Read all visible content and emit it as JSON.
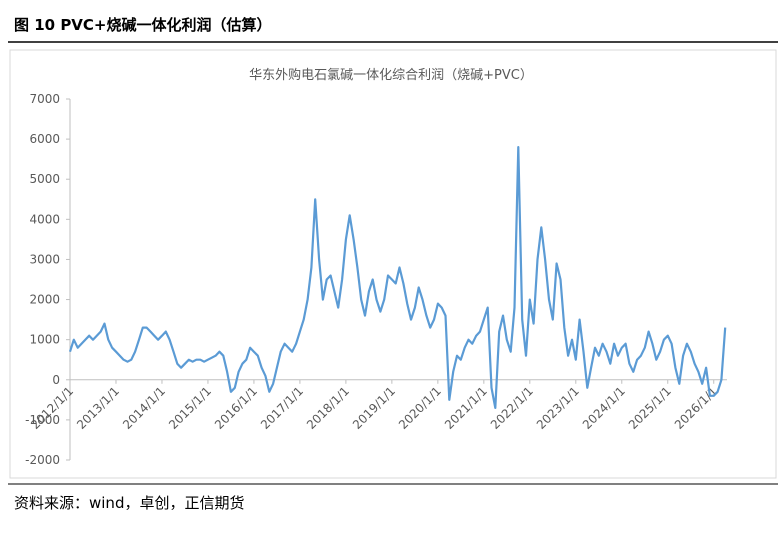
{
  "header": {
    "title": "图 10    PVC+烧碱一体化利润（估算）"
  },
  "footer": {
    "source": "资料来源：wind，卓创，正信期货"
  },
  "chart_data": {
    "type": "line",
    "title": "华东外购电石氯碱一体化综合利润（烧碱+PVC）",
    "xlim": [
      "2012/1/1",
      "2026/4/15"
    ],
    "xticks": [
      "2012/1/1",
      "2013/1/1",
      "2014/1/1",
      "2015/1/1",
      "2016/1/1",
      "2017/1/1",
      "2018/1/1",
      "2019/1/1",
      "2020/1/1",
      "2021/1/1",
      "2022/1/1",
      "2023/1/1",
      "2024/1/1",
      "2025/1/1",
      "2026/1/1"
    ],
    "ylim": [
      -2000,
      7000
    ],
    "yticks": [
      -2000,
      -1000,
      0,
      1000,
      2000,
      3000,
      4000,
      5000,
      6000,
      7000
    ],
    "series": [
      {
        "color": "#5b9bd5",
        "x": [
          "2012/1/1",
          "2012/2/1",
          "2012/3/1",
          "2012/4/1",
          "2012/5/1",
          "2012/6/1",
          "2012/7/1",
          "2012/8/1",
          "2012/9/1",
          "2012/10/1",
          "2012/11/1",
          "2012/12/1",
          "2013/1/1",
          "2013/2/1",
          "2013/3/1",
          "2013/4/1",
          "2013/5/1",
          "2013/6/1",
          "2013/7/1",
          "2013/8/1",
          "2013/9/1",
          "2013/10/1",
          "2013/11/1",
          "2013/12/1",
          "2014/1/1",
          "2014/2/1",
          "2014/3/1",
          "2014/4/1",
          "2014/5/1",
          "2014/6/1",
          "2014/7/1",
          "2014/8/1",
          "2014/9/1",
          "2014/10/1",
          "2014/11/1",
          "2014/12/1",
          "2015/1/1",
          "2015/2/1",
          "2015/3/1",
          "2015/4/1",
          "2015/5/1",
          "2015/6/1",
          "2015/7/1",
          "2015/8/1",
          "2015/9/1",
          "2015/10/1",
          "2015/11/1",
          "2015/12/1",
          "2016/1/1",
          "2016/2/1",
          "2016/3/1",
          "2016/4/1",
          "2016/5/1",
          "2016/6/1",
          "2016/7/1",
          "2016/8/1",
          "2016/9/1",
          "2016/10/1",
          "2016/11/1",
          "2016/12/1",
          "2017/1/1",
          "2017/2/1",
          "2017/3/1",
          "2017/4/1",
          "2017/5/1",
          "2017/6/1",
          "2017/7/1",
          "2017/8/1",
          "2017/9/1",
          "2017/10/1",
          "2017/11/1",
          "2017/12/1",
          "2018/1/1",
          "2018/2/1",
          "2018/3/1",
          "2018/4/1",
          "2018/5/1",
          "2018/6/1",
          "2018/7/1",
          "2018/8/1",
          "2018/9/1",
          "2018/10/1",
          "2018/11/1",
          "2018/12/1",
          "2019/1/1",
          "2019/2/1",
          "2019/3/1",
          "2019/4/1",
          "2019/5/1",
          "2019/6/1",
          "2019/7/1",
          "2019/8/1",
          "2019/9/1",
          "2019/10/1",
          "2019/11/1",
          "2019/12/1",
          "2020/1/1",
          "2020/2/1",
          "2020/3/1",
          "2020/4/1",
          "2020/5/1",
          "2020/6/1",
          "2020/7/1",
          "2020/8/1",
          "2020/9/1",
          "2020/10/1",
          "2020/11/1",
          "2020/12/1",
          "2021/1/1",
          "2021/2/1",
          "2021/3/1",
          "2021/4/1",
          "2021/5/1",
          "2021/6/1",
          "2021/7/1",
          "2021/8/1",
          "2021/9/1",
          "2021/10/1",
          "2021/11/1",
          "2021/12/1",
          "2022/1/1",
          "2022/2/1",
          "2022/3/1",
          "2022/4/1",
          "2022/5/1",
          "2022/6/1",
          "2022/7/1",
          "2022/8/1",
          "2022/9/1",
          "2022/10/1",
          "2022/11/1",
          "2022/12/1",
          "2023/1/1",
          "2023/2/1",
          "2023/3/1",
          "2023/4/1",
          "2023/5/1",
          "2023/6/1",
          "2023/7/1",
          "2023/8/1",
          "2023/9/1",
          "2023/10/1",
          "2023/11/1",
          "2023/12/1",
          "2024/1/1",
          "2024/2/1",
          "2024/3/1",
          "2024/4/1",
          "2024/5/1",
          "2024/6/1",
          "2024/7/1",
          "2024/8/1",
          "2024/9/1",
          "2024/10/1",
          "2024/11/1",
          "2024/12/1",
          "2025/1/1",
          "2025/2/1",
          "2025/3/1",
          "2025/4/1",
          "2025/5/1",
          "2025/6/1",
          "2025/7/1",
          "2025/8/1",
          "2025/9/1",
          "2025/10/1",
          "2025/11/1",
          "2025/12/1",
          "2026/1/1",
          "2026/2/1",
          "2026/3/1",
          "2026/4/1"
        ],
        "values": [
          700,
          1000,
          800,
          900,
          1000,
          1100,
          1000,
          1100,
          1200,
          1400,
          1000,
          800,
          700,
          600,
          500,
          450,
          500,
          700,
          1000,
          1300,
          1300,
          1200,
          1100,
          1000,
          1100,
          1200,
          1000,
          700,
          400,
          300,
          400,
          500,
          450,
          500,
          500,
          450,
          500,
          550,
          600,
          700,
          600,
          200,
          -300,
          -200,
          200,
          400,
          500,
          800,
          700,
          600,
          300,
          100,
          -300,
          -100,
          300,
          700,
          900,
          800,
          700,
          900,
          1200,
          1500,
          2000,
          2800,
          4500,
          3000,
          2000,
          2500,
          2600,
          2200,
          1800,
          2500,
          3500,
          4100,
          3500,
          2800,
          2000,
          1600,
          2200,
          2500,
          2000,
          1700,
          2000,
          2600,
          2500,
          2400,
          2800,
          2400,
          1900,
          1500,
          1800,
          2300,
          2000,
          1600,
          1300,
          1500,
          1900,
          1800,
          1600,
          -500,
          200,
          600,
          500,
          800,
          1000,
          900,
          1100,
          1200,
          1500,
          1800,
          -200,
          -700,
          1200,
          1600,
          1000,
          700,
          1800,
          5800,
          1500,
          600,
          2000,
          1400,
          3000,
          3800,
          3000,
          2000,
          1500,
          2900,
          2500,
          1300,
          600,
          1000,
          500,
          1500,
          700,
          -200,
          300,
          800,
          600,
          900,
          700,
          400,
          900,
          600,
          800,
          900,
          400,
          200,
          500,
          600,
          800,
          1200,
          900,
          500,
          700,
          1000,
          1100,
          900,
          300,
          -100,
          600,
          900,
          700,
          400,
          200,
          -100,
          300,
          -400,
          -400,
          -300,
          0,
          1300
        ]
      }
    ]
  }
}
